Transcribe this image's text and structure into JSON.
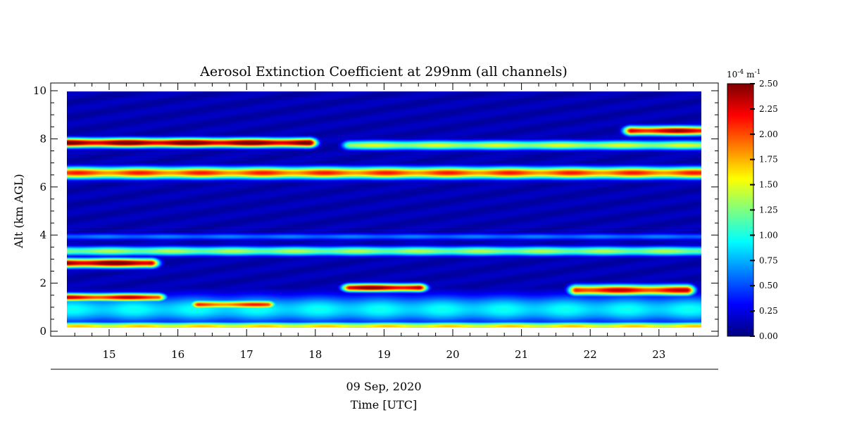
{
  "chart_data": {
    "type": "heatmap",
    "title": "Aerosol Extinction Coefficient at 299nm (all channels)",
    "ylabel": "Alt (km AGL)",
    "xlabel_date": "09 Sep, 2020",
    "xlabel": "Time [UTC]",
    "x_tick_labels": [
      "15",
      "16",
      "17",
      "18",
      "19",
      "20",
      "21",
      "22",
      "23"
    ],
    "y_tick_labels": [
      "0",
      "2",
      "4",
      "6",
      "8",
      "10"
    ],
    "xlim": [
      14.4,
      23.6
    ],
    "ylim": [
      0,
      10
    ],
    "colorbar": {
      "unit_base": "10",
      "unit_exp": "-4",
      "unit_m": "m",
      "unit_m_exp": "-1",
      "ticks": [
        "0.00",
        "0.25",
        "0.50",
        "0.75",
        "1.00",
        "1.25",
        "1.50",
        "1.75",
        "2.00",
        "2.25",
        "2.50"
      ],
      "range": [
        0,
        2.5
      ],
      "colormap": "jet"
    },
    "features": [
      {
        "layer": "surface",
        "alt_km": [
          0.1,
          0.35
        ],
        "time": [
          14.4,
          23.6
        ],
        "value": 1.6
      },
      {
        "layer": "boundary",
        "alt_km": [
          0.35,
          1.5
        ],
        "time": [
          14.4,
          23.6
        ],
        "value": 0.9
      },
      {
        "layer": "pbl top",
        "alt_km": [
          1.3,
          1.55
        ],
        "time": [
          14.4,
          15.7
        ],
        "value": 2.2
      },
      {
        "layer": "pbl top",
        "alt_km": [
          1.0,
          1.25
        ],
        "time": [
          16.3,
          17.3
        ],
        "value": 2.0
      },
      {
        "layer": "pbl top",
        "alt_km": [
          1.7,
          1.95
        ],
        "time": [
          18.5,
          19.5
        ],
        "value": 2.4
      },
      {
        "layer": "pbl top",
        "alt_km": [
          1.55,
          1.9
        ],
        "time": [
          21.8,
          23.4
        ],
        "value": 2.2
      },
      {
        "layer": "lower aerosol",
        "alt_km": [
          2.7,
          3.0
        ],
        "time": [
          14.4,
          15.6
        ],
        "value": 2.5
      },
      {
        "layer": "mid aerosol",
        "alt_km": [
          3.2,
          3.5
        ],
        "time": [
          14.4,
          23.6
        ],
        "value": 1.3
      },
      {
        "layer": "mid aerosol",
        "alt_km": [
          3.85,
          4.05
        ],
        "time": [
          14.4,
          23.6
        ],
        "value": 0.6
      },
      {
        "layer": "elevated",
        "alt_km": [
          6.4,
          6.8
        ],
        "time": [
          14.4,
          23.6
        ],
        "value": 2.0
      },
      {
        "layer": "upper",
        "alt_km": [
          7.7,
          8.0
        ],
        "time": [
          14.4,
          17.9
        ],
        "value": 2.5
      },
      {
        "layer": "upper",
        "alt_km": [
          7.6,
          7.9
        ],
        "time": [
          18.5,
          23.6
        ],
        "value": 1.4
      },
      {
        "layer": "upper",
        "alt_km": [
          8.2,
          8.5
        ],
        "time": [
          22.6,
          23.6
        ],
        "value": 2.3
      }
    ]
  }
}
